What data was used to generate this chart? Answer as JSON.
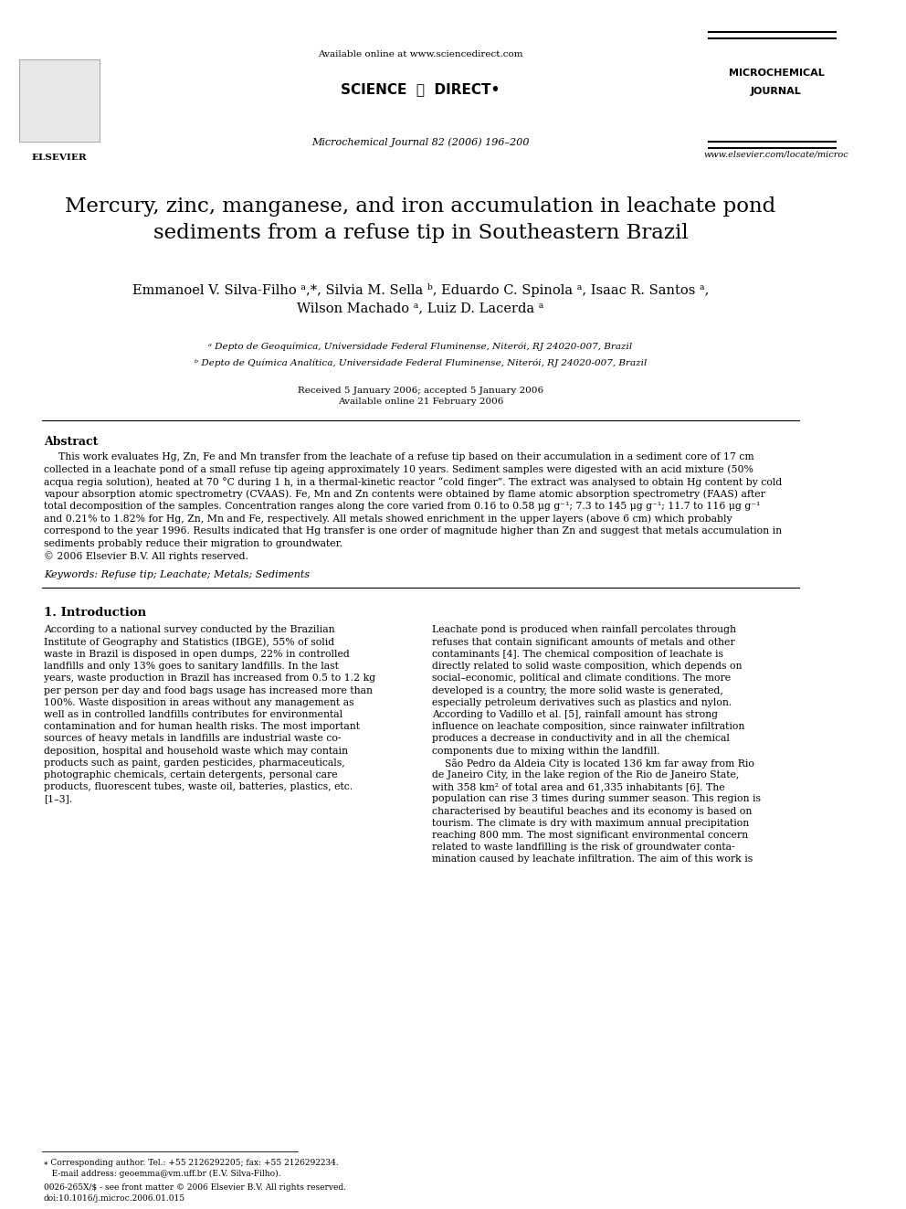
{
  "page_bg": "#ffffff",
  "header": {
    "available_online": "Available online at www.sciencedirect.com",
    "sciencedirect_text": "SCIENCEⓓDIRECT•",
    "journal_name_line1": "MICROCHEMICAL",
    "journal_name_line2": "JOURNAL",
    "journal_citation": "Microchemical Journal 82 (2006) 196–200",
    "journal_url": "www.elsevier.com/locate/microc"
  },
  "title": "Mercury, zinc, manganese, and iron accumulation in leachate pond\nsediments from a refuse tip in Southeastern Brazil",
  "authors": "Emmanoel V. Silva-Filho ᵃ,*, Silvia M. Sella ᵇ, Eduardo C. Spinola ᵃ, Isaac R. Santos ᵃ,\nWilson Machado ᵃ, Luiz D. Lacerda ᵃ",
  "affiliation_a": "ᵃ Depto de Geoquímica, Universidade Federal Fluminense, Niterói, RJ 24020-007, Brazil",
  "affiliation_b": "ᵇ Depto de Química Analítica, Universidade Federal Fluminense, Niterói, RJ 24020-007, Brazil",
  "dates": "Received 5 January 2006; accepted 5 January 2006\nAvailable online 21 February 2006",
  "abstract_title": "Abstract",
  "abstract_text": "This work evaluates Hg, Zn, Fe and Mn transfer from the leachate of a refuse tip based on their accumulation in a sediment core of 17 cm\ncollected in a leachate pond of a small refuse tip ageing approximately 10 years. Sediment samples were digested with an acid mixture (50%\nacqua regia solution), heated at 70 °C during 1 h, in a thermal-kinetic reactor “cold finger”. The extract was analysed to obtain Hg content by cold\nvapour absorption atomic spectrometry (CVAAS). Fe, Mn and Zn contents were obtained by flame atomic absorption spectrometry (FAAS) after\ntotal decomposition of the samples. Concentration ranges along the core varied from 0.16 to 0.58 μg g⁻¹; 7.3 to 145 μg g⁻¹; 11.7 to 116 μg g⁻¹\nand 0.21% to 1.82% for Hg, Zn, Mn and Fe, respectively. All metals showed enrichment in the upper layers (above 6 cm) which probably\ncorrespond to the year 1996. Results indicated that Hg transfer is one order of magnitude higher than Zn and suggest that metals accumulation in\nsediments probably reduce their migration to groundwater.\n© 2006 Elsevier B.V. All rights reserved.",
  "keywords": "Keywords: Refuse tip; Leachate; Metals; Sediments",
  "section1_title": "1. Introduction",
  "intro_left": "According to a national survey conducted by the Brazilian\nInstitute of Geography and Statistics (IBGE), 55% of solid\nwaste in Brazil is disposed in open dumps, 22% in controlled\nlandfills and only 13% goes to sanitary landfills. In the last\nyears, waste production in Brazil has increased from 0.5 to 1.2 kg\nper person per day and food bags usage has increased more than\n100%. Waste disposition in areas without any management as\nwell as in controlled landfills contributes for environmental\ncontamination and for human health risks. The most important\nsources of heavy metals in landfills are industrial waste co-\ndeposition, hospital and household waste which may contain\nproducts such as paint, garden pesticides, pharmaceuticals,\nphotographic chemicals, certain detergents, personal care\nproducts, fluorescent tubes, waste oil, batteries, plastics, etc.\n[1–3].",
  "intro_right": "Leachate pond is produced when rainfall percolates through\nrefuses that contain significant amounts of metals and other\ncontaminants [4]. The chemical composition of leachate is\ndirectly related to solid waste composition, which depends on\nsocial–economic, political and climate conditions. The more\ndeveloped is a country, the more solid waste is generated,\nespecially petroleum derivatives such as plastics and nylon.\nAccording to Vadillo et al. [5], rainfall amount has strong\ninfluence on leachate composition, since rainwater infiltration\nproduces a decrease in conductivity and in all the chemical\ncomponents due to mixing within the landfill.\n    São Pedro da Aldeia City is located 136 km far away from Rio\nde Janeiro City, in the lake region of the Rio de Janeiro State,\nwith 358 km² of total area and 61,335 inhabitants [6]. The\npopulation can rise 3 times during summer season. This region is\ncharacterised by beautiful beaches and its economy is based on\ntourism. The climate is dry with maximum annual precipitation\nreaching 800 mm. The most significant environmental concern\nrelated to waste landfilling is the risk of groundwater conta-\nmination caused by leachate infiltration. The aim of this work is",
  "footer_left": "⁎ Corresponding author. Tel.: +55 2126292205; fax: +55 2126292234.\n   E-mail address: geoemma@vm.uff.br (E.V. Silva-Filho).",
  "footer_bottom": "0026-265X/$ - see front matter © 2006 Elsevier B.V. All rights reserved.\ndoi:10.1016/j.microc.2006.01.015"
}
